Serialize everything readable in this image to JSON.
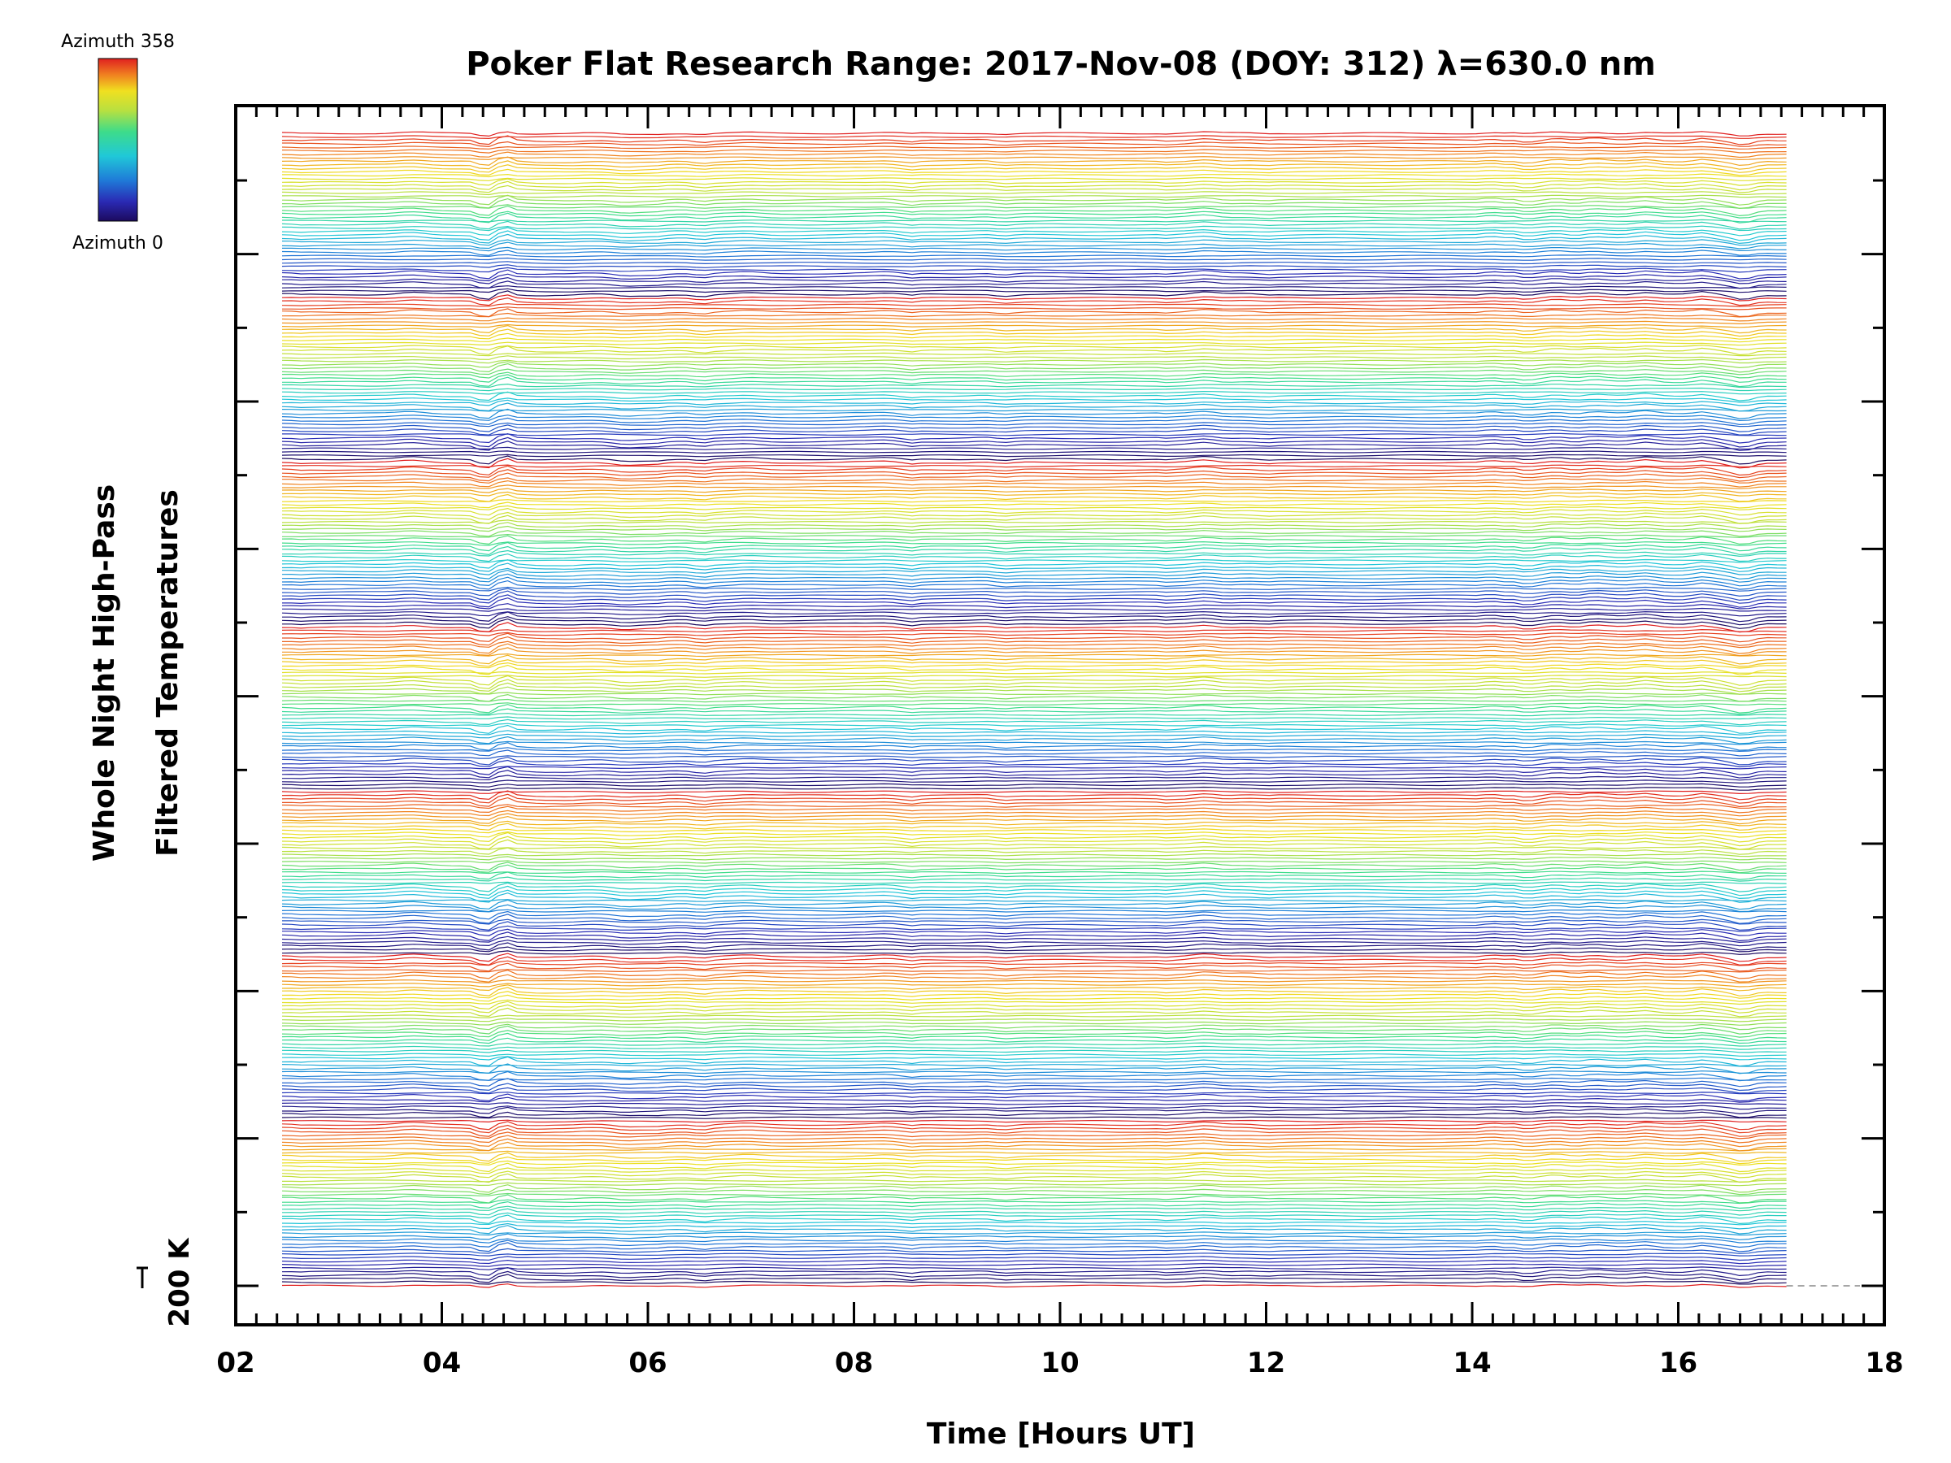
{
  "chart_data": {
    "type": "line",
    "title": "Poker Flat Research Range: 2017-Nov-08 (DOY: 312) λ=630.0 nm",
    "xlabel": "Time [Hours UT]",
    "ylabel_lines": [
      "Whole Night High-Pass",
      "Filtered Temperatures"
    ],
    "scale_label": "200 K",
    "xlim": [
      2,
      18
    ],
    "x_ticks": [
      "02",
      "04",
      "06",
      "08",
      "10",
      "12",
      "14",
      "16",
      "18"
    ],
    "x_range_of_data": [
      2.45,
      17.05
    ],
    "colorbar": {
      "top_label": "Azimuth 358",
      "bottom_label": "Azimuth 0",
      "colormap": [
        "#1c0a5e",
        "#2a2ab4",
        "#1f7ad8",
        "#20c8d8",
        "#3edc8a",
        "#b8e040",
        "#f0e020",
        "#f08020",
        "#e02020"
      ]
    },
    "series_description": "Stacked high-pass filtered temperature traces, color cycling from blue (azimuth 0) to red (azimuth 358) in repeating groups",
    "grid": false,
    "legend": "colorbar top-left"
  }
}
